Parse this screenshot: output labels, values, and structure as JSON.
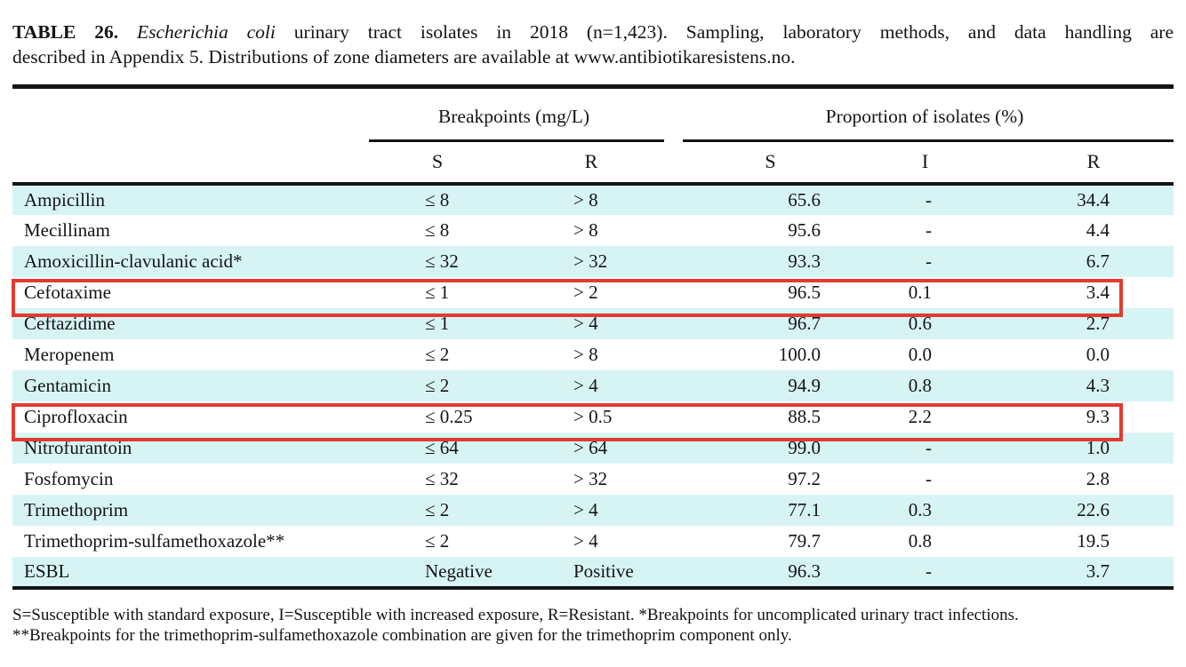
{
  "caption": {
    "label": "TABLE 26.",
    "organism": "Escherichia coli",
    "line1_rest": "urinary tract isolates in 2018 (n=1,423). Sampling, laboratory methods, and data handling are",
    "line2": "described in Appendix 5. Distributions of zone diameters are available at www.antibiotikaresistens.no."
  },
  "table": {
    "group_headers": {
      "breakpoints": "Breakpoints (mg/L)",
      "proportion": "Proportion of isolates (%)"
    },
    "sub_headers": {
      "bp_s": "S",
      "bp_r": "R",
      "prop_s": "S",
      "prop_i": "I",
      "prop_r": "R"
    },
    "rows": [
      {
        "name": "Ampicillin",
        "bp_s": "≤ 8",
        "bp_r": "> 8",
        "s": "65.6",
        "i": "-",
        "r": "34.4",
        "highlighted": false
      },
      {
        "name": "Mecillinam",
        "bp_s": "≤ 8",
        "bp_r": "> 8",
        "s": "95.6",
        "i": "-",
        "r": "4.4",
        "highlighted": false
      },
      {
        "name": "Amoxicillin-clavulanic acid*",
        "bp_s": "≤ 32",
        "bp_r": "> 32",
        "s": "93.3",
        "i": "-",
        "r": "6.7",
        "highlighted": false
      },
      {
        "name": "Cefotaxime",
        "bp_s": "≤ 1",
        "bp_r": "> 2",
        "s": "96.5",
        "i": "0.1",
        "r": "3.4",
        "highlighted": true
      },
      {
        "name": "Ceftazidime",
        "bp_s": "≤ 1",
        "bp_r": "> 4",
        "s": "96.7",
        "i": "0.6",
        "r": "2.7",
        "highlighted": false
      },
      {
        "name": "Meropenem",
        "bp_s": "≤ 2",
        "bp_r": "> 8",
        "s": "100.0",
        "i": "0.0",
        "r": "0.0",
        "highlighted": false
      },
      {
        "name": "Gentamicin",
        "bp_s": "≤ 2",
        "bp_r": "> 4",
        "s": "94.9",
        "i": "0.8",
        "r": "4.3",
        "highlighted": false
      },
      {
        "name": "Ciprofloxacin",
        "bp_s": "≤ 0.25",
        "bp_r": "> 0.5",
        "s": "88.5",
        "i": "2.2",
        "r": "9.3",
        "highlighted": true
      },
      {
        "name": "Nitrofurantoin",
        "bp_s": "≤ 64",
        "bp_r": "> 64",
        "s": "99.0",
        "i": "-",
        "r": "1.0",
        "highlighted": false
      },
      {
        "name": "Fosfomycin",
        "bp_s": "≤ 32",
        "bp_r": "> 32",
        "s": "97.2",
        "i": "-",
        "r": "2.8",
        "highlighted": false
      },
      {
        "name": "Trimethoprim",
        "bp_s": "≤ 2",
        "bp_r": "> 4",
        "s": "77.1",
        "i": "0.3",
        "r": "22.6",
        "highlighted": false
      },
      {
        "name": "Trimethoprim-sulfamethoxazole**",
        "bp_s": "≤ 2",
        "bp_r": "> 4",
        "s": "79.7",
        "i": "0.8",
        "r": "19.5",
        "highlighted": false
      },
      {
        "name": "ESBL",
        "bp_s": "Negative",
        "bp_r": "Positive",
        "s": "96.3",
        "i": "-",
        "r": "3.7",
        "highlighted": false
      }
    ]
  },
  "footnotes": {
    "line1": "S=Susceptible with standard exposure, I=Susceptible with increased exposure, R=Resistant. *Breakpoints for uncomplicated urinary tract infections.",
    "line2": "**Breakpoints for the trimethoprim-sulfamethoxazole combination are given for the trimethoprim component only."
  },
  "colors": {
    "row_alt": "#d7f4f5",
    "highlight_border": "#e23b2e",
    "rule": "#141414"
  }
}
